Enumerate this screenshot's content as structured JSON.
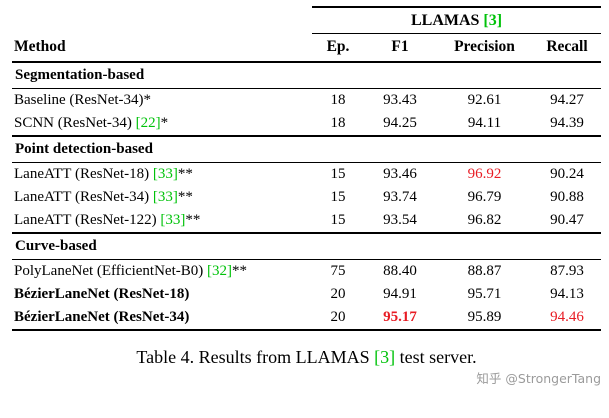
{
  "colors": {
    "citation_green": "#00c20a",
    "highlight_red": "#e81c24",
    "watermark_gray": "#9b9b9b"
  },
  "header": {
    "group_label": "LLAMAS",
    "group_cite": "[3]",
    "columns": [
      "Method",
      "Ep.",
      "F1",
      "Precision",
      "Recall"
    ]
  },
  "sections": [
    {
      "title": "Segmentation-based",
      "rows": [
        {
          "method": "Baseline (ResNet-34)*",
          "cite": "",
          "suffix": "",
          "ep": "18",
          "f1": "93.43",
          "precision": "92.61",
          "recall": "94.27"
        },
        {
          "method": "SCNN (ResNet-34) ",
          "cite": "[22]",
          "suffix": "*",
          "ep": "18",
          "f1": "94.25",
          "precision": "94.11",
          "recall": "94.39"
        }
      ]
    },
    {
      "title": "Point detection-based",
      "rows": [
        {
          "method": "LaneATT (ResNet-18) ",
          "cite": "[33]",
          "suffix": "**",
          "ep": "15",
          "f1": "93.46",
          "precision": "96.92",
          "recall": "90.24"
        },
        {
          "method": "LaneATT (ResNet-34) ",
          "cite": "[33]",
          "suffix": "**",
          "ep": "15",
          "f1": "93.74",
          "precision": "96.79",
          "recall": "90.88"
        },
        {
          "method": "LaneATT (ResNet-122) ",
          "cite": "[33]",
          "suffix": "**",
          "ep": "15",
          "f1": "93.54",
          "precision": "96.82",
          "recall": "90.47"
        }
      ]
    },
    {
      "title": "Curve-based",
      "rows": [
        {
          "method": "PolyLaneNet (EfficientNet-B0) ",
          "cite": "[32]",
          "suffix": "**",
          "ep": "75",
          "f1": "88.40",
          "precision": "88.87",
          "recall": "87.93"
        },
        {
          "method": "BézierLaneNet (ResNet-18)",
          "cite": "",
          "suffix": "",
          "ep": "20",
          "f1": "94.91",
          "precision": "95.71",
          "recall": "94.13"
        },
        {
          "method": "BézierLaneNet (ResNet-34)",
          "cite": "",
          "suffix": "",
          "ep": "20",
          "f1": "95.17",
          "precision": "95.89",
          "recall": "94.46"
        }
      ]
    }
  ],
  "caption": {
    "pre": "Table 4. Results from LLAMAS ",
    "cite": "[3]",
    "post": " test server."
  },
  "watermark": "知乎 @StrongerTang"
}
